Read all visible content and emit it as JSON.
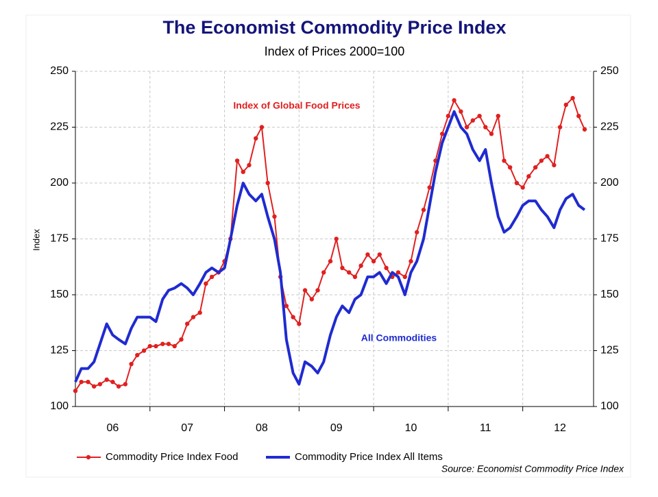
{
  "chart_data": {
    "type": "line",
    "title": "The Economist Commodity Price Index",
    "subtitle": "Index of Prices 2000=100",
    "y_label": "Index",
    "source": "Source: Economist Commodity Price Index",
    "annotations": [
      {
        "text": "Index of Global Food Prices",
        "color": "#e02020"
      },
      {
        "text": "All Commodities",
        "color": "#1f2bd0"
      }
    ],
    "xlim": [
      2006,
      2012.95
    ],
    "xticks": [
      2007,
      2008,
      2009,
      2010,
      2011,
      2012
    ],
    "xlabels": [
      {
        "value": 2006.5,
        "label": "06"
      },
      {
        "value": 2007.5,
        "label": "07"
      },
      {
        "value": 2008.5,
        "label": "08"
      },
      {
        "value": 2009.5,
        "label": "09"
      },
      {
        "value": 2010.5,
        "label": "10"
      },
      {
        "value": 2011.5,
        "label": "11"
      },
      {
        "value": 2012.5,
        "label": "12"
      }
    ],
    "ylim": [
      100,
      250
    ],
    "yticks": [
      100,
      125,
      150,
      175,
      200,
      225,
      250
    ],
    "grid": true,
    "x": [
      2006.0,
      2006.08,
      2006.17,
      2006.25,
      2006.33,
      2006.42,
      2006.5,
      2006.58,
      2006.67,
      2006.75,
      2006.83,
      2006.92,
      2007.0,
      2007.08,
      2007.17,
      2007.25,
      2007.33,
      2007.42,
      2007.5,
      2007.58,
      2007.67,
      2007.75,
      2007.83,
      2007.92,
      2008.0,
      2008.08,
      2008.17,
      2008.25,
      2008.33,
      2008.42,
      2008.5,
      2008.58,
      2008.67,
      2008.75,
      2008.83,
      2008.92,
      2009.0,
      2009.08,
      2009.17,
      2009.25,
      2009.33,
      2009.42,
      2009.5,
      2009.58,
      2009.67,
      2009.75,
      2009.83,
      2009.92,
      2010.0,
      2010.08,
      2010.17,
      2010.25,
      2010.33,
      2010.42,
      2010.5,
      2010.58,
      2010.67,
      2010.75,
      2010.83,
      2010.92,
      2011.0,
      2011.08,
      2011.17,
      2011.25,
      2011.33,
      2011.42,
      2011.5,
      2011.58,
      2011.67,
      2011.75,
      2011.83,
      2011.92,
      2012.0,
      2012.08,
      2012.17,
      2012.25,
      2012.33,
      2012.42,
      2012.5,
      2012.58,
      2012.67,
      2012.75,
      2012.83
    ],
    "series": [
      {
        "name": "Commodity Price Index Food",
        "color": "#e02020",
        "markers": true,
        "values": [
          107,
          111,
          111,
          109,
          110,
          112,
          111,
          109,
          110,
          119,
          123,
          125,
          127,
          127,
          128,
          128,
          127,
          130,
          137,
          140,
          142,
          155,
          158,
          160,
          165,
          175,
          210,
          205,
          208,
          220,
          225,
          200,
          185,
          158,
          145,
          140,
          137,
          152,
          148,
          152,
          160,
          165,
          175,
          162,
          160,
          158,
          163,
          168,
          165,
          168,
          162,
          158,
          160,
          158,
          165,
          178,
          188,
          198,
          210,
          222,
          230,
          237,
          232,
          225,
          228,
          230,
          225,
          222,
          230,
          210,
          207,
          200,
          198,
          203,
          207,
          210,
          212,
          208,
          225,
          235,
          238,
          230,
          224
        ]
      },
      {
        "name": "Commodity Price Index All Items",
        "color": "#1f2bd0",
        "markers": false,
        "values": [
          111,
          117,
          117,
          120,
          128,
          137,
          132,
          130,
          128,
          135,
          140,
          140,
          140,
          138,
          148,
          152,
          153,
          155,
          153,
          150,
          155,
          160,
          162,
          160,
          162,
          175,
          190,
          200,
          195,
          192,
          195,
          185,
          175,
          160,
          130,
          115,
          110,
          120,
          118,
          115,
          120,
          132,
          140,
          145,
          142,
          148,
          150,
          158,
          158,
          160,
          155,
          160,
          158,
          150,
          160,
          165,
          175,
          190,
          205,
          218,
          225,
          232,
          225,
          222,
          215,
          210,
          215,
          200,
          185,
          178,
          180,
          185,
          190,
          192,
          192,
          188,
          185,
          180,
          188,
          193,
          195,
          190,
          188
        ]
      }
    ]
  }
}
